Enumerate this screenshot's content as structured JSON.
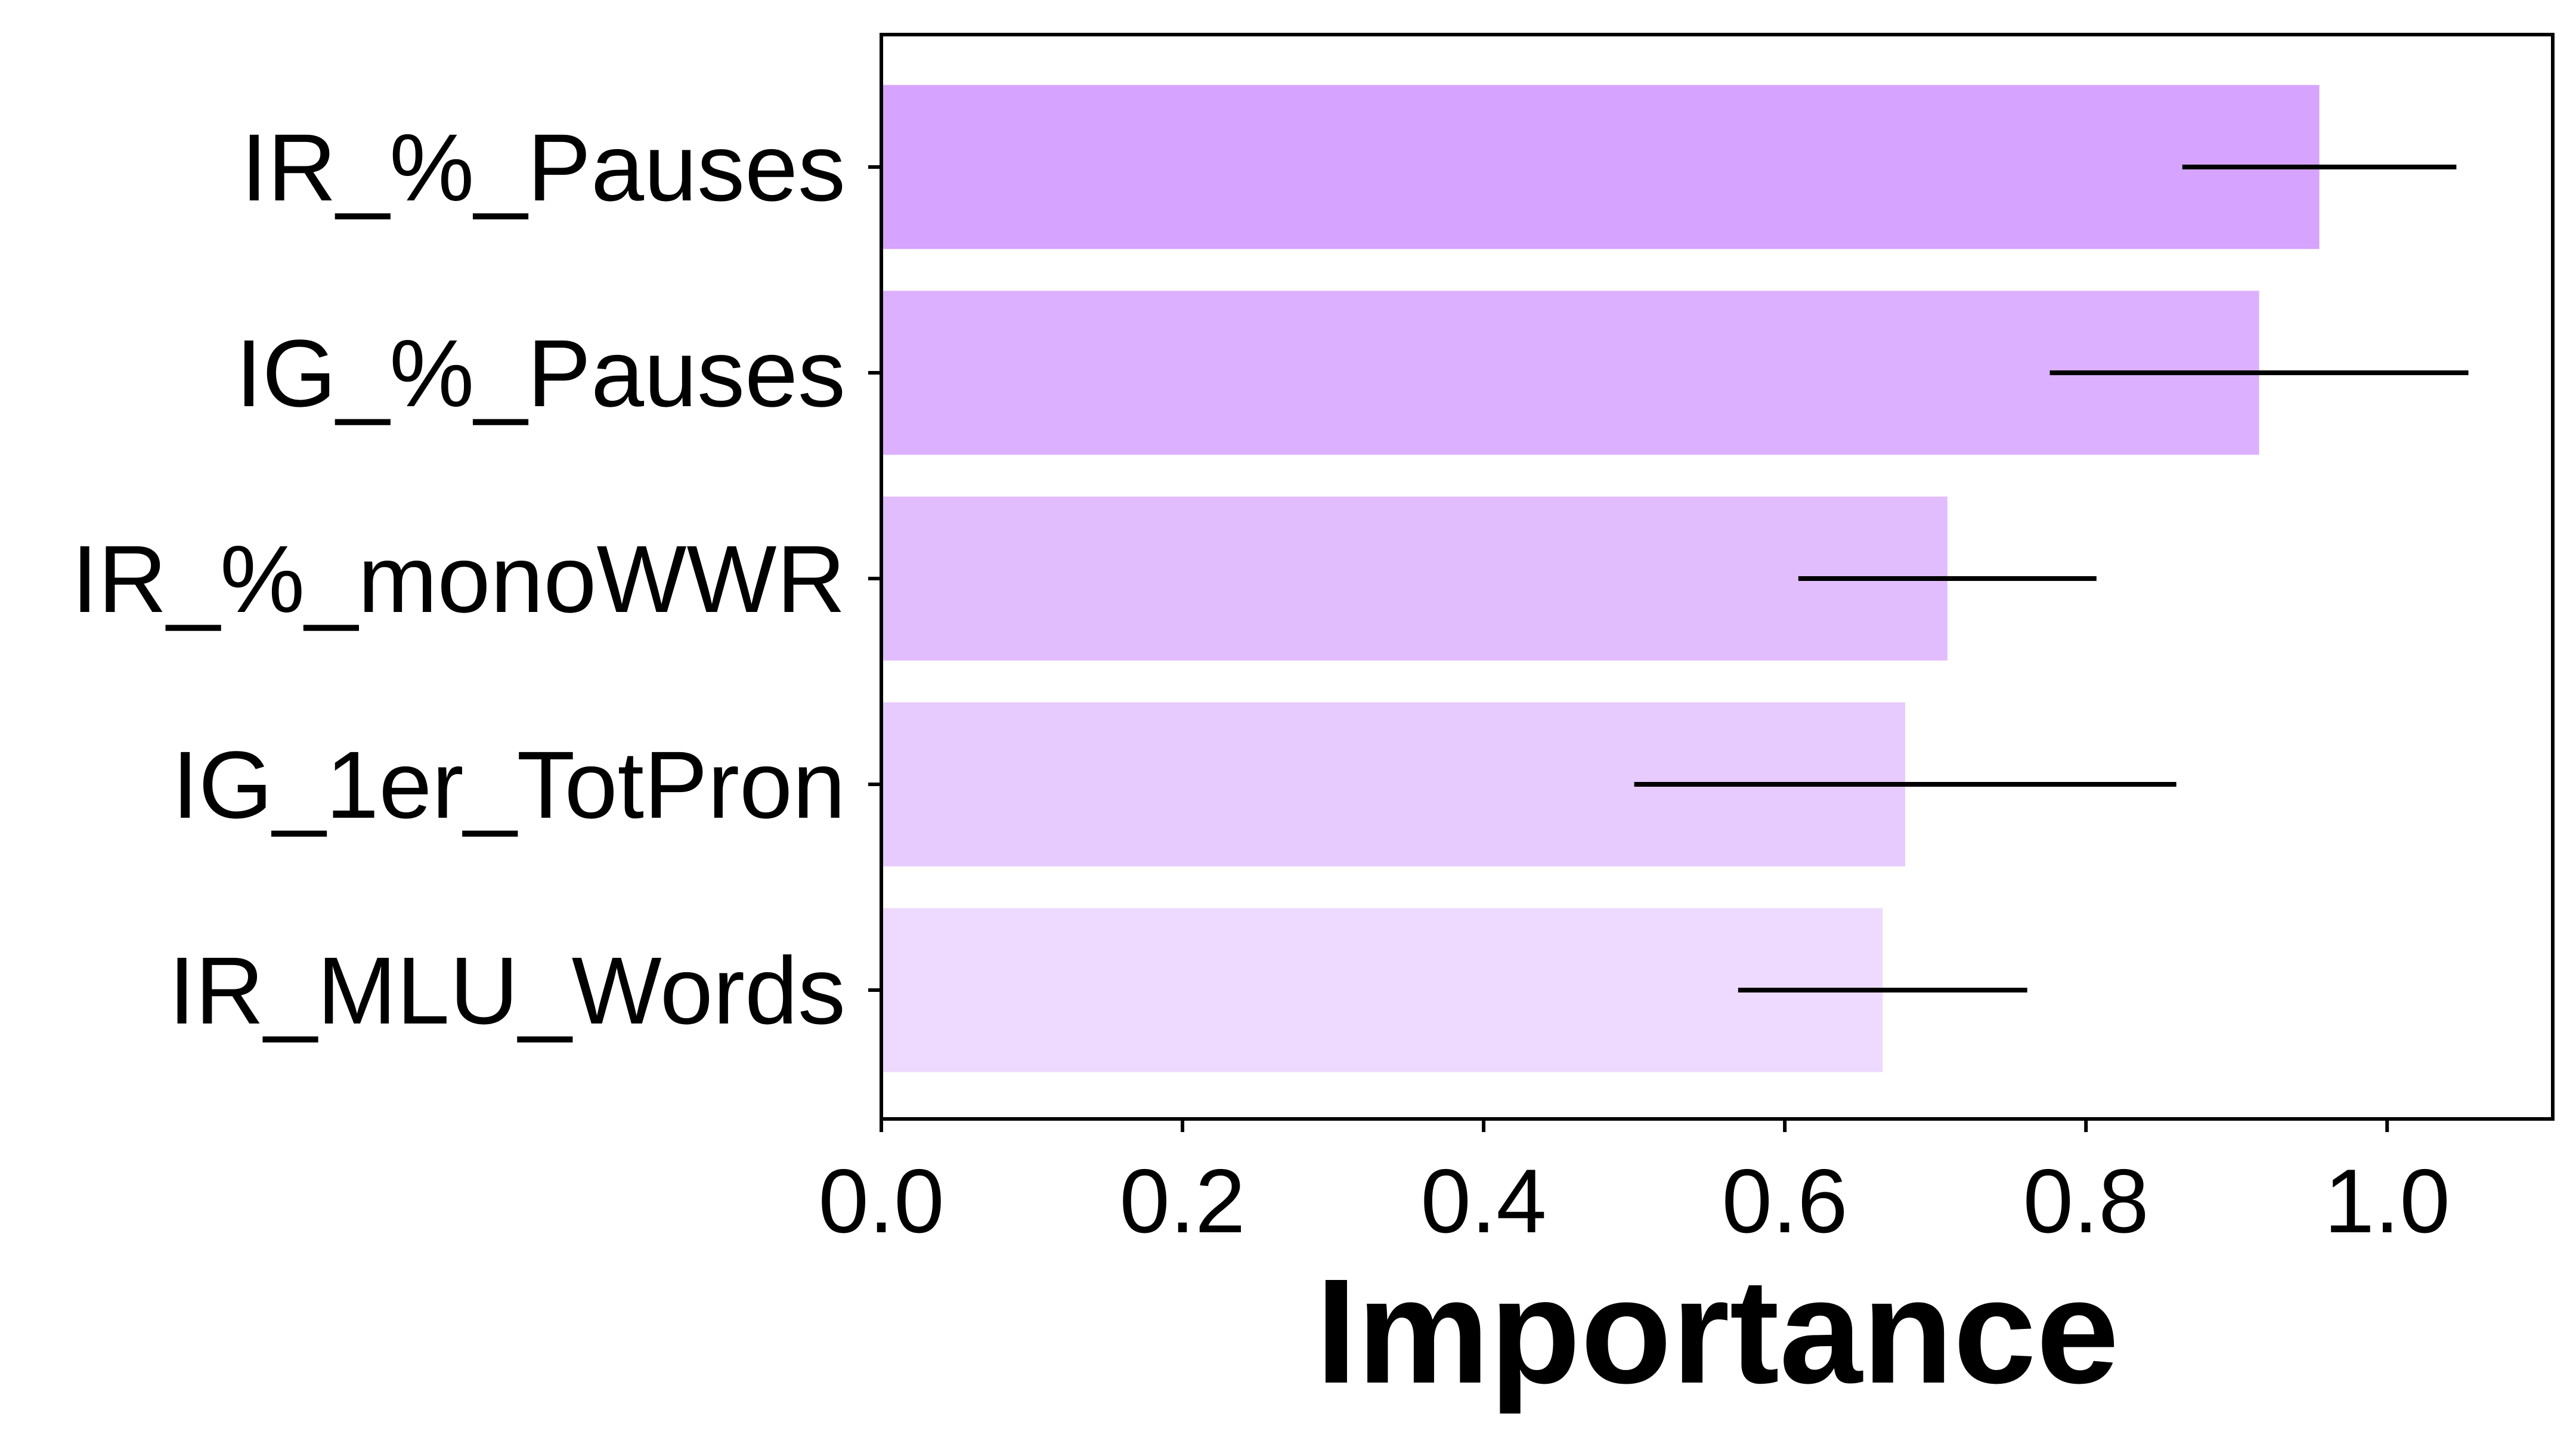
{
  "chart_data": {
    "type": "bar",
    "orientation": "horizontal",
    "title": "",
    "xlabel": "Importance",
    "ylabel": "",
    "categories": [
      "IR_%_Pauses",
      "IG_%_Pauses",
      "IR_%_monoWWR",
      "IG_1er_TotPron",
      "IR_MLU_Words"
    ],
    "values": [
      0.955,
      0.915,
      0.708,
      0.68,
      0.665
    ],
    "errors": [
      0.091,
      0.139,
      0.099,
      0.18,
      0.096
    ],
    "bar_colors": [
      "#d6a3fe",
      "#dcb0fe",
      "#e2bdfe",
      "#e8cbfe",
      "#eedafe"
    ],
    "error_color": "#000000",
    "xlim": [
      0.0,
      1.11
    ],
    "xticks": [
      0.0,
      0.2,
      0.4,
      0.6,
      0.8,
      1.0
    ],
    "xtick_labels": [
      "0.0",
      "0.2",
      "0.4",
      "0.6",
      "0.8",
      "1.0"
    ],
    "grid": false,
    "legend": "none"
  }
}
